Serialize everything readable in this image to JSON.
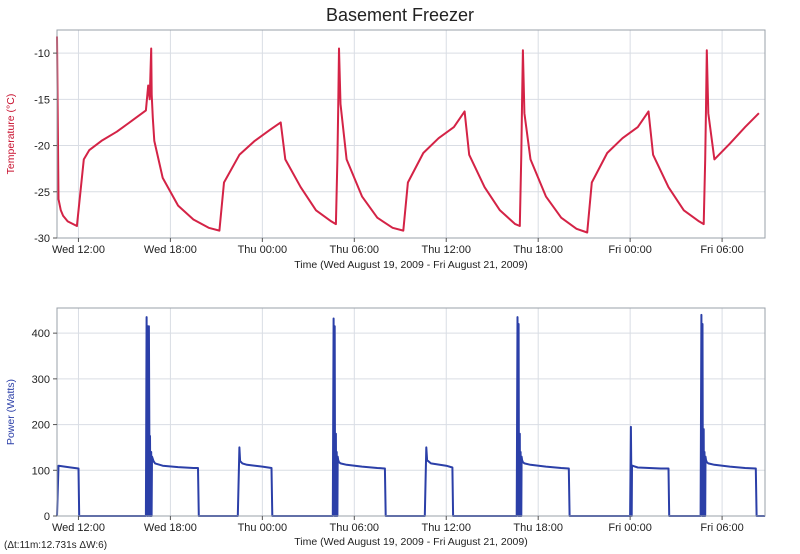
{
  "title": "Basement Freezer",
  "status_text": "(Δt:11m:12.731s ΔW:6)",
  "chart_data": [
    {
      "type": "line",
      "ylabel": "Temperature (°C)",
      "xlabel": "Time (Wed August 19, 2009 - Fri August 21, 2009)",
      "xlim": [
        10.6,
        56.8
      ],
      "ylim": [
        -30,
        -7.5
      ],
      "yticks": [
        -30,
        -25,
        -20,
        -15,
        -10
      ],
      "xticks": [
        12,
        18,
        24,
        30,
        36,
        42,
        48,
        54
      ],
      "xtick_labels": [
        "Wed 12:00",
        "Wed 18:00",
        "Thu 00:00",
        "Thu 06:00",
        "Thu 12:00",
        "Thu 18:00",
        "Fri 00:00",
        "Fri 06:00"
      ],
      "colors": {
        "line": "#d42346",
        "label": "#c8102e"
      },
      "series": [
        {
          "name": "Temperature",
          "x": [
            10.6,
            10.7,
            10.85,
            11.0,
            11.3,
            11.9,
            12.35,
            12.7,
            13.5,
            14.5,
            15.5,
            16.4,
            16.55,
            16.65,
            16.7,
            16.75,
            16.78,
            16.85,
            16.95,
            17.5,
            18.5,
            19.5,
            20.5,
            21.2,
            21.5,
            22.5,
            23.5,
            24.5,
            25.2,
            25.5,
            26.5,
            27.5,
            28.5,
            28.8,
            28.9,
            28.95,
            29.0,
            29.1,
            29.5,
            30.5,
            31.5,
            32.5,
            33.2,
            33.5,
            34.5,
            35.5,
            36.5,
            37.2,
            37.5,
            38.5,
            39.5,
            40.5,
            40.8,
            40.9,
            40.95,
            41.0,
            41.1,
            41.5,
            42.5,
            43.5,
            44.5,
            45.2,
            45.5,
            46.5,
            47.5,
            48.5,
            49.2,
            49.5,
            50.5,
            51.5,
            52.5,
            52.8,
            52.9,
            52.95,
            53.0,
            53.1,
            53.5,
            54.5,
            55.5,
            56.4
          ],
          "y": [
            -8.2,
            -25.8,
            -27.0,
            -27.6,
            -28.2,
            -28.7,
            -21.5,
            -20.5,
            -19.5,
            -18.5,
            -17.3,
            -16.2,
            -13.5,
            -15.0,
            -12.0,
            -9.5,
            -14.5,
            -17.0,
            -19.5,
            -23.5,
            -26.5,
            -28.0,
            -28.9,
            -29.2,
            -24.0,
            -21.0,
            -19.5,
            -18.3,
            -17.5,
            -21.5,
            -24.5,
            -27.0,
            -28.2,
            -28.5,
            -21.5,
            -16.0,
            -9.5,
            -15.5,
            -21.5,
            -25.5,
            -27.8,
            -28.9,
            -29.2,
            -24.0,
            -20.8,
            -19.2,
            -18.0,
            -16.3,
            -21.0,
            -24.5,
            -27.0,
            -28.5,
            -28.7,
            -21.0,
            -15.0,
            -9.7,
            -16.5,
            -21.5,
            -25.5,
            -27.8,
            -29.0,
            -29.4,
            -24.0,
            -20.8,
            -19.2,
            -18.0,
            -16.3,
            -21.0,
            -24.5,
            -27.0,
            -28.2,
            -28.5,
            -21.5,
            -16.0,
            -9.7,
            -16.5,
            -21.5,
            -19.8,
            -18.0,
            -16.5
          ]
        }
      ]
    },
    {
      "type": "line",
      "ylabel": "Power (Watts)",
      "xlabel": "Time (Wed August 19, 2009 - Fri August 21, 2009)",
      "xlim": [
        10.6,
        56.8
      ],
      "ylim": [
        0,
        455
      ],
      "yticks": [
        0,
        100,
        200,
        300,
        400
      ],
      "xticks": [
        12,
        18,
        24,
        30,
        36,
        42,
        48,
        54
      ],
      "xtick_labels": [
        "Wed 12:00",
        "Wed 18:00",
        "Thu 00:00",
        "Thu 06:00",
        "Thu 12:00",
        "Thu 18:00",
        "Fri 00:00",
        "Fri 06:00"
      ],
      "colors": {
        "line": "#2b3fa8",
        "label": "#2b3fa8"
      },
      "series": [
        {
          "name": "Power",
          "x": [
            10.6,
            10.7,
            11.5,
            12.0,
            12.05,
            16.4,
            16.45,
            16.5,
            16.52,
            16.55,
            16.6,
            16.65,
            16.67,
            16.7,
            16.75,
            16.77,
            16.8,
            16.9,
            17.0,
            17.5,
            18.5,
            19.5,
            19.8,
            19.85,
            22.4,
            22.5,
            22.55,
            22.7,
            23.0,
            24.0,
            24.6,
            24.65,
            28.6,
            28.65,
            28.7,
            28.72,
            28.75,
            28.8,
            28.82,
            28.85,
            28.9,
            28.92,
            28.95,
            29.0,
            29.1,
            29.5,
            30.5,
            31.5,
            32.0,
            32.05,
            34.6,
            34.7,
            34.75,
            35.0,
            36.0,
            36.4,
            36.45,
            40.6,
            40.65,
            40.7,
            40.72,
            40.75,
            40.8,
            40.82,
            40.85,
            40.9,
            40.92,
            40.95,
            41.0,
            41.1,
            41.5,
            42.5,
            43.5,
            44.0,
            44.05,
            48.0,
            48.05,
            48.1,
            48.12,
            48.15,
            48.5,
            50.0,
            50.5,
            50.55,
            52.6,
            52.65,
            52.7,
            52.72,
            52.75,
            52.8,
            52.82,
            52.85,
            52.9,
            52.92,
            52.95,
            53.0,
            53.1,
            53.5,
            54.5,
            55.5,
            56.2,
            56.25,
            56.8
          ],
          "y": [
            0,
            110,
            106,
            104,
            0,
            0,
            435,
            0,
            415,
            0,
            415,
            0,
            175,
            0,
            140,
            0,
            130,
            120,
            115,
            110,
            107,
            105,
            105,
            0,
            0,
            150,
            120,
            115,
            112,
            108,
            105,
            0,
            0,
            432,
            0,
            415,
            0,
            180,
            0,
            140,
            0,
            130,
            122,
            118,
            115,
            112,
            108,
            105,
            104,
            0,
            0,
            150,
            122,
            115,
            110,
            106,
            0,
            0,
            435,
            0,
            420,
            0,
            180,
            0,
            140,
            0,
            130,
            122,
            118,
            115,
            112,
            108,
            105,
            104,
            0,
            0,
            195,
            0,
            108,
            110,
            106,
            104,
            104,
            0,
            0,
            440,
            0,
            420,
            0,
            190,
            0,
            140,
            0,
            130,
            122,
            118,
            115,
            112,
            108,
            105,
            104,
            0,
            0
          ]
        }
      ]
    }
  ]
}
